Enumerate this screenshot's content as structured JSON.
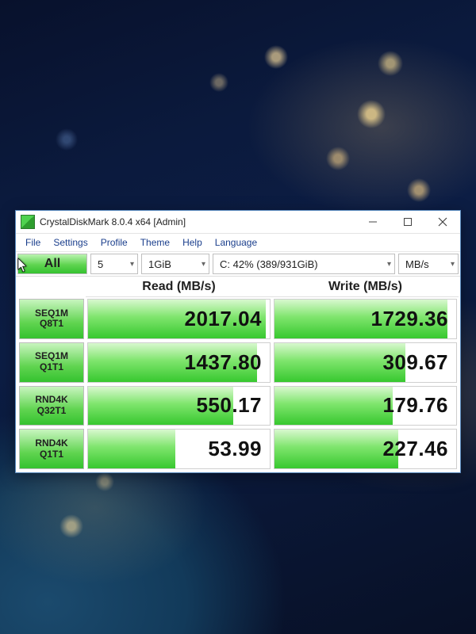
{
  "window": {
    "title": "CrystalDiskMark 8.0.4 x64 [Admin]",
    "icon_name": "crystaldiskmark-icon"
  },
  "menu": {
    "items": [
      "File",
      "Settings",
      "Profile",
      "Theme",
      "Help",
      "Language"
    ]
  },
  "config": {
    "all_button_label": "All",
    "test_count": "5",
    "test_size": "1GiB",
    "drive": "C: 42% (389/931GiB)",
    "unit": "MB/s"
  },
  "columns": {
    "read": "Read (MB/s)",
    "write": "Write (MB/s)"
  },
  "tests": [
    {
      "name_line1": "SEQ1M",
      "name_line2": "Q8T1",
      "read": "2017.04",
      "read_fill_pct": 98,
      "write": "1729.36",
      "write_fill_pct": 95
    },
    {
      "name_line1": "SEQ1M",
      "name_line2": "Q1T1",
      "read": "1437.80",
      "read_fill_pct": 93,
      "write": "309.67",
      "write_fill_pct": 72
    },
    {
      "name_line1": "RND4K",
      "name_line2": "Q32T1",
      "read": "550.17",
      "read_fill_pct": 80,
      "write": "179.76",
      "write_fill_pct": 65
    },
    {
      "name_line1": "RND4K",
      "name_line2": "Q1T1",
      "read": "53.99",
      "read_fill_pct": 48,
      "write": "227.46",
      "write_fill_pct": 68
    }
  ],
  "colors": {
    "window_border": "#5a8bbf",
    "button_gradient_top": "#c8f5bf",
    "button_gradient_bottom": "#34c22f",
    "bar_gradient_top": "#d8f8cf",
    "bar_gradient_bottom": "#37c82f",
    "text": "#111111",
    "background_space": "#0b1a3d"
  }
}
